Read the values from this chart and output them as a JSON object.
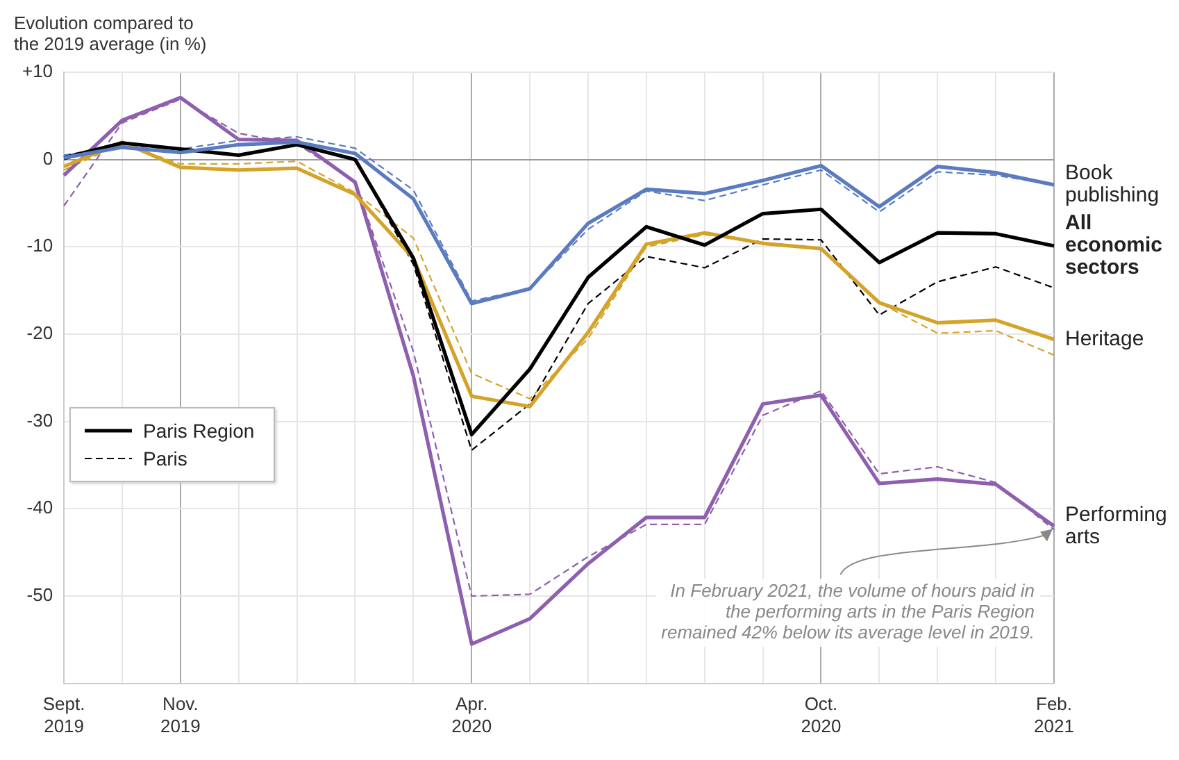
{
  "chart_data": {
    "type": "line",
    "ylabel": "Evolution compared to the 2019 average (in %)",
    "categories": [
      "Sept. 2019",
      null,
      "Nov. 2019",
      null,
      null,
      null,
      null,
      "Apr. 2020",
      null,
      null,
      null,
      null,
      null,
      "Oct. 2020",
      null,
      null,
      null,
      "Feb. 2021"
    ],
    "series": [
      {
        "name": "Book publishing",
        "color": "#5b7bc0",
        "line_style": "solid",
        "values": [
          0.2,
          1.4,
          0.8,
          1.7,
          2.0,
          0.7,
          -4.5,
          -16.5,
          -14.8,
          -7.3,
          -3.4,
          -3.9,
          -2.4,
          -0.7,
          -5.4,
          -0.8,
          -1.5,
          -2.9
        ]
      },
      {
        "color": "#5b7bc0",
        "line_style": "dashed",
        "values": [
          0.5,
          1.6,
          1.2,
          2.2,
          2.6,
          1.3,
          -3.5,
          -16.2,
          -14.8,
          -8.0,
          -3.6,
          -4.7,
          -2.9,
          -1.2,
          -6.0,
          -1.4,
          -1.8,
          -2.9
        ]
      },
      {
        "name": "All economic sectors",
        "color": "#000000",
        "line_style": "solid",
        "values": [
          0.2,
          1.9,
          1.2,
          0.5,
          1.7,
          0,
          -11.3,
          -31.5,
          -24.0,
          -13.5,
          -7.7,
          -9.8,
          -6.2,
          -5.7,
          -11.8,
          -8.4,
          -8.5,
          -9.9
        ]
      },
      {
        "color": "#000000",
        "line_style": "dashed",
        "values": [
          0,
          1.8,
          1.2,
          0.5,
          1.6,
          0,
          -12.0,
          -33.3,
          -28.0,
          -16.5,
          -11.1,
          -12.4,
          -9.1,
          -9.2,
          -17.8,
          -14.0,
          -12.3,
          -14.7
        ]
      },
      {
        "name": "Heritage",
        "color": "#d4a32a",
        "line_style": "solid",
        "values": [
          -0.8,
          2.0,
          -0.9,
          -1.2,
          -1.0,
          -4.0,
          -11.3,
          -27.1,
          -28.3,
          -19.8,
          -9.7,
          -8.4,
          -9.6,
          -10.2,
          -16.4,
          -18.7,
          -18.4,
          -20.6
        ]
      },
      {
        "color": "#d4a32a",
        "line_style": "dashed",
        "values": [
          -1.2,
          1.8,
          -0.5,
          -0.5,
          -0.2,
          -3.8,
          -9.0,
          -24.5,
          -27.4,
          -20.5,
          -10.0,
          -8.6,
          -9.6,
          -10.2,
          -16.4,
          -19.9,
          -19.6,
          -22.4
        ]
      },
      {
        "name": "Performing arts",
        "color": "#8e5fae",
        "line_style": "solid",
        "values": [
          -1.8,
          4.5,
          7.1,
          2.3,
          2.2,
          -2.6,
          -24.8,
          -55.5,
          -52.6,
          -46.3,
          -41.0,
          -41.0,
          -28.0,
          -27.0,
          -37.1,
          -36.6,
          -37.2,
          -42.0
        ]
      },
      {
        "color": "#8e5fae",
        "line_style": "dashed",
        "values": [
          -5.3,
          4.2,
          6.9,
          3.0,
          1.8,
          -2.5,
          -22.0,
          -50.0,
          -49.8,
          -45.5,
          -41.8,
          -41.8,
          -29.3,
          -26.5,
          -36.0,
          -35.2,
          -37.0,
          -42.4
        ]
      }
    ],
    "ylim": [
      -60,
      10
    ],
    "yticks": [
      {
        "value": 10,
        "label": "+10"
      },
      0,
      -10,
      -20,
      -30,
      -40,
      -50
    ],
    "grid": true,
    "legend": false,
    "marker": "none",
    "annotations": [
      "Paris Region",
      "Paris",
      {
        "text": "In February 2021, the volume of hours paid in the performing arts in the Paris Region remained 42% below its average level in 2019.",
        "x": "Feb. 2021",
        "y": -42
      }
    ]
  }
}
